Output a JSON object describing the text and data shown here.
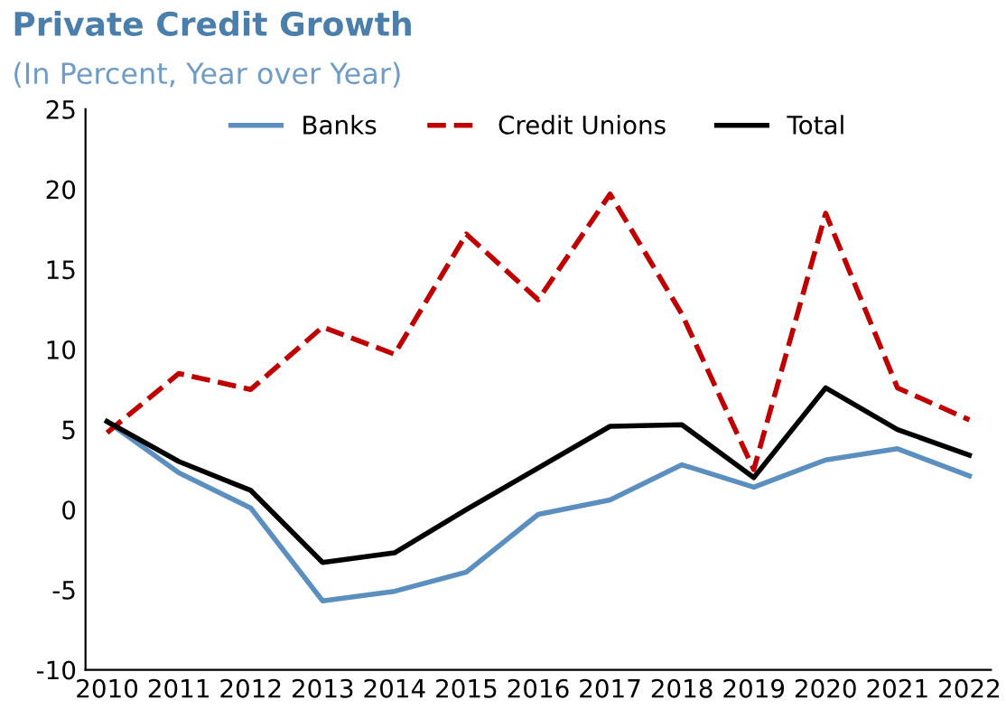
{
  "chart_data": {
    "type": "line",
    "title": "Private Credit Growth",
    "subtitle": "(In Percent, Year over Year)",
    "categories": [
      "2010",
      "2011",
      "2012",
      "2013",
      "2014",
      "2015",
      "2016",
      "2017",
      "2018",
      "2019",
      "2020",
      "2021",
      "2022"
    ],
    "series": [
      {
        "name": "Banks",
        "color": "#5b8fbf",
        "line_style": "solid",
        "values": [
          5.5,
          2.3,
          0.1,
          -5.7,
          -5.1,
          -3.9,
          -0.3,
          0.6,
          2.8,
          1.4,
          3.1,
          3.8,
          2.1
        ]
      },
      {
        "name": "Credit Unions",
        "color": "#c00000",
        "line_style": "dashed",
        "values": [
          4.8,
          8.5,
          7.5,
          11.4,
          9.7,
          17.2,
          13.1,
          19.7,
          12.2,
          2.5,
          18.5,
          7.6,
          5.6
        ]
      },
      {
        "name": "Total",
        "color": "#000000",
        "line_style": "solid",
        "values": [
          5.5,
          3.0,
          1.2,
          -3.3,
          -2.7,
          0.0,
          2.6,
          5.2,
          5.3,
          2.0,
          7.6,
          5.0,
          3.4
        ]
      }
    ],
    "ylim": [
      -10,
      25
    ],
    "yticks": [
      -10,
      -5,
      0,
      5,
      10,
      15,
      20,
      25
    ],
    "grid": false,
    "legend": "top"
  }
}
